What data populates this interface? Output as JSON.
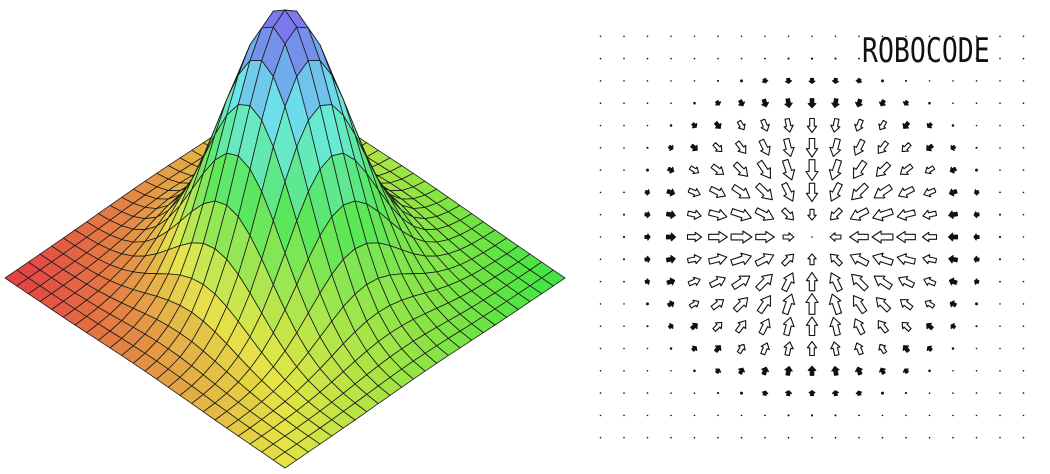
{
  "label": "ROBOCODE"
}
